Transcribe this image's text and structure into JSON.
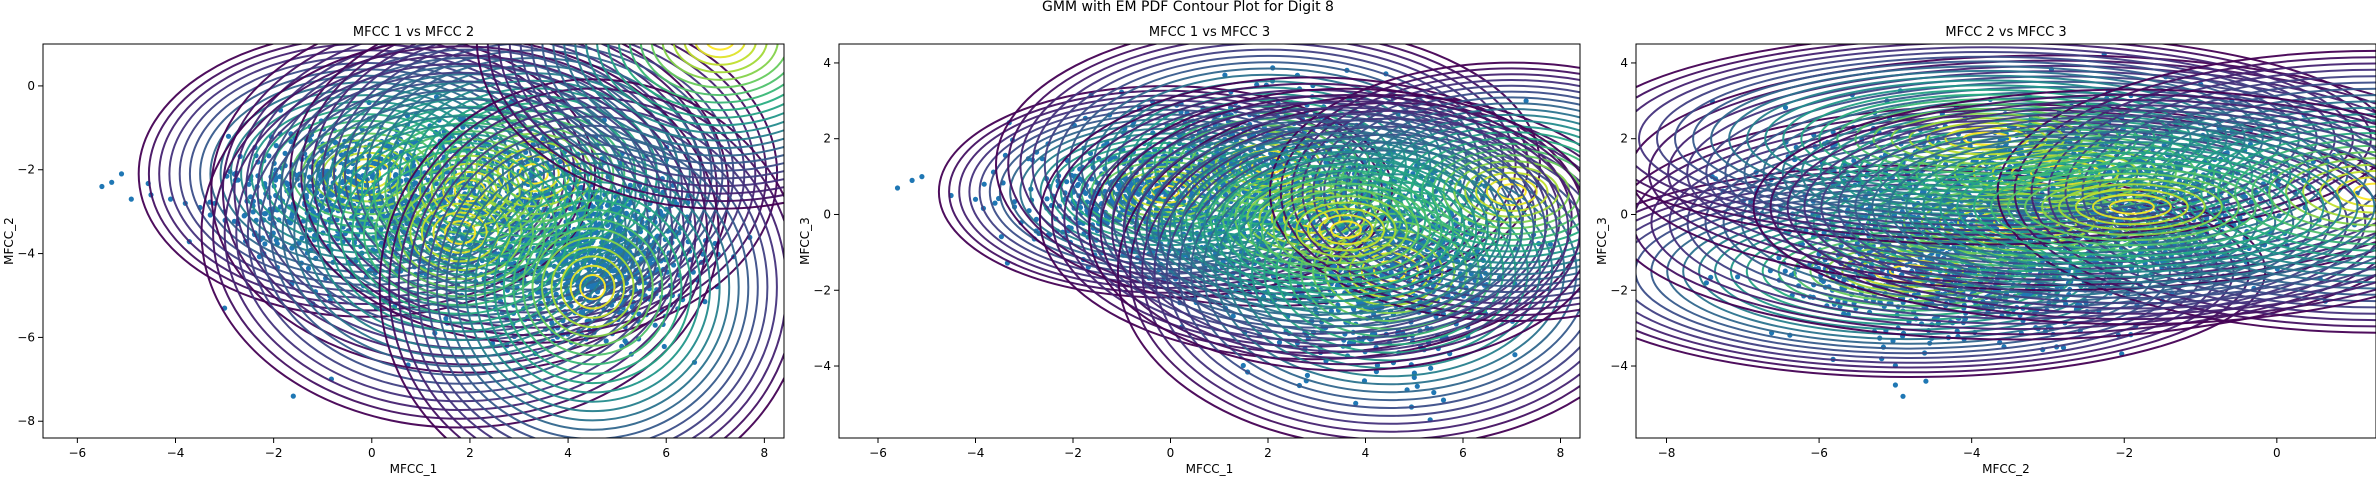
{
  "figure": {
    "suptitle": "GMM with EM PDF Contour Plot for Digit 8"
  },
  "colors": {
    "points": "#1f77b4",
    "contour_low": "#440154",
    "contour_mid": "#21918c",
    "contour_high": "#fde725",
    "axes": "#000000"
  },
  "chart_data": [
    {
      "type": "scatter",
      "title": "MFCC 1 vs MFCC 2",
      "xlabel": "MFCC_1",
      "ylabel": "MFCC_2",
      "xlim": [
        -6.7,
        8.4
      ],
      "ylim": [
        -8.4,
        1.0
      ],
      "xticks": [
        -6,
        -4,
        -2,
        0,
        2,
        4,
        6,
        8
      ],
      "yticks": [
        -8,
        -6,
        -4,
        -2,
        0
      ],
      "gaussians": [
        {
          "mean": [
            -0.1,
            -2.1
          ],
          "std": [
            1.5,
            1.1
          ],
          "rot": 0
        },
        {
          "mean": [
            2.0,
            -2.5
          ],
          "std": [
            1.7,
            1.4
          ],
          "rot": 0
        },
        {
          "mean": [
            3.3,
            -2.1
          ],
          "std": [
            1.6,
            1.3
          ],
          "rot": 0
        },
        {
          "mean": [
            1.8,
            -3.5
          ],
          "std": [
            1.7,
            1.5
          ],
          "rot": 0
        },
        {
          "mean": [
            4.5,
            -4.8
          ],
          "std": [
            1.4,
            1.6
          ],
          "rot": 0
        },
        {
          "mean": [
            7.1,
            1.1
          ],
          "std": [
            1.6,
            1.3
          ],
          "rot": 0
        }
      ],
      "points": {
        "clusters": [
          {
            "mean": [
              1.5,
              -2.8
            ],
            "std": [
              1.5,
              1.0
            ],
            "n": 900
          },
          {
            "mean": [
              4.5,
              -4.0
            ],
            "std": [
              1.0,
              0.9
            ],
            "n": 900
          },
          {
            "mean": [
              -0.5,
              -2.5
            ],
            "std": [
              1.2,
              0.7
            ],
            "n": 400
          }
        ],
        "extra": [
          [
            -5.3,
            -2.3
          ],
          [
            -5.1,
            -2.1
          ],
          [
            -5.5,
            -2.4
          ],
          [
            -4.9,
            -2.7
          ],
          [
            -4.5,
            -2.6
          ],
          [
            -4.1,
            -2.7
          ],
          [
            -3.8,
            -2.8
          ],
          [
            -3.5,
            -2.9
          ],
          [
            -3.2,
            -2.8
          ],
          [
            -3.0,
            -3.0
          ],
          [
            -2.6,
            -3.1
          ],
          [
            -3.0,
            -5.3
          ],
          [
            -1.6,
            -7.4
          ],
          [
            -2.2,
            -4.0
          ],
          [
            -1.2,
            -5.2
          ]
        ]
      }
    },
    {
      "type": "scatter",
      "title": "MFCC 1 vs MFCC 3",
      "xlabel": "MFCC_1",
      "ylabel": "MFCC_3",
      "xlim": [
        -6.8,
        8.4
      ],
      "ylim": [
        -5.9,
        4.5
      ],
      "xticks": [
        -6,
        -4,
        -2,
        0,
        2,
        4,
        6,
        8
      ],
      "yticks": [
        -4,
        -2,
        0,
        2,
        4
      ],
      "gaussians": [
        {
          "mean": [
            -0.1,
            0.6
          ],
          "std": [
            1.5,
            0.9
          ],
          "rot": 0
        },
        {
          "mean": [
            2.0,
            1.3
          ],
          "std": [
            1.8,
            1.2
          ],
          "rot": 0
        },
        {
          "mean": [
            2.9,
            -0.1
          ],
          "std": [
            1.8,
            1.2
          ],
          "rot": 0
        },
        {
          "mean": [
            4.5,
            -1.5
          ],
          "std": [
            1.8,
            1.5
          ],
          "rot": 0
        },
        {
          "mean": [
            7.0,
            0.6
          ],
          "std": [
            1.6,
            1.1
          ],
          "rot": 0
        },
        {
          "mean": [
            3.6,
            -0.4
          ],
          "std": [
            1.7,
            1.2
          ],
          "rot": 0
        }
      ],
      "points": {
        "clusters": [
          {
            "mean": [
              1.5,
              0.6
            ],
            "std": [
              1.6,
              1.1
            ],
            "n": 1000
          },
          {
            "mean": [
              4.2,
              -1.2
            ],
            "std": [
              1.1,
              1.2
            ],
            "n": 900
          },
          {
            "mean": [
              -0.6,
              0.6
            ],
            "std": [
              1.1,
              0.6
            ],
            "n": 400
          }
        ],
        "extra": [
          [
            -5.3,
            0.9
          ],
          [
            -5.1,
            1.0
          ],
          [
            -5.6,
            0.7
          ],
          [
            -4.5,
            0.5
          ],
          [
            -4.0,
            0.4
          ],
          [
            -3.6,
            0.3
          ],
          [
            -3.2,
            0.2
          ],
          [
            -2.9,
            0.1
          ],
          [
            -2.7,
            -0.5
          ],
          [
            5.4,
            -4.7
          ],
          [
            5.6,
            -4.9
          ],
          [
            5.0,
            -4.3
          ]
        ]
      }
    },
    {
      "type": "scatter",
      "title": "MFCC 2 vs MFCC 3",
      "xlabel": "MFCC_2",
      "ylabel": "MFCC_3",
      "xlim": [
        -8.4,
        1.3
      ],
      "ylim": [
        -5.9,
        4.5
      ],
      "xticks": [
        -8,
        -6,
        -4,
        -2,
        0
      ],
      "yticks": [
        -4,
        -2,
        0,
        2,
        4
      ],
      "gaussians": [
        {
          "mean": [
            -4.8,
            -1.5
          ],
          "std": [
            1.5,
            0.9
          ],
          "rot": 0
        },
        {
          "mean": [
            -3.4,
            -0.2
          ],
          "std": [
            1.7,
            1.0
          ],
          "rot": 0
        },
        {
          "mean": [
            -2.9,
            1.1
          ],
          "std": [
            1.8,
            1.0
          ],
          "rot": 0
        },
        {
          "mean": [
            -3.8,
            2.0
          ],
          "std": [
            1.7,
            0.9
          ],
          "rot": 0
        },
        {
          "mean": [
            1.3,
            0.6
          ],
          "std": [
            1.6,
            1.2
          ],
          "rot": 0
        },
        {
          "mean": [
            -1.9,
            0.2
          ],
          "std": [
            1.6,
            1.0
          ],
          "rot": 0
        }
      ],
      "points": {
        "clusters": [
          {
            "mean": [
              -3.2,
              0.6
            ],
            "std": [
              1.3,
              1.1
            ],
            "n": 1100
          },
          {
            "mean": [
              -4.2,
              -1.5
            ],
            "std": [
              1.1,
              0.9
            ],
            "n": 700
          },
          {
            "mean": [
              -1.8,
              0.0
            ],
            "std": [
              0.9,
              0.8
            ],
            "n": 500
          }
        ],
        "extra": [
          [
            -7.4,
            1.0
          ],
          [
            -6.6,
            0.5
          ],
          [
            -6.5,
            0.2
          ],
          [
            -4.9,
            -4.8
          ],
          [
            -5.0,
            -4.5
          ],
          [
            -4.6,
            -4.4
          ]
        ]
      }
    }
  ]
}
